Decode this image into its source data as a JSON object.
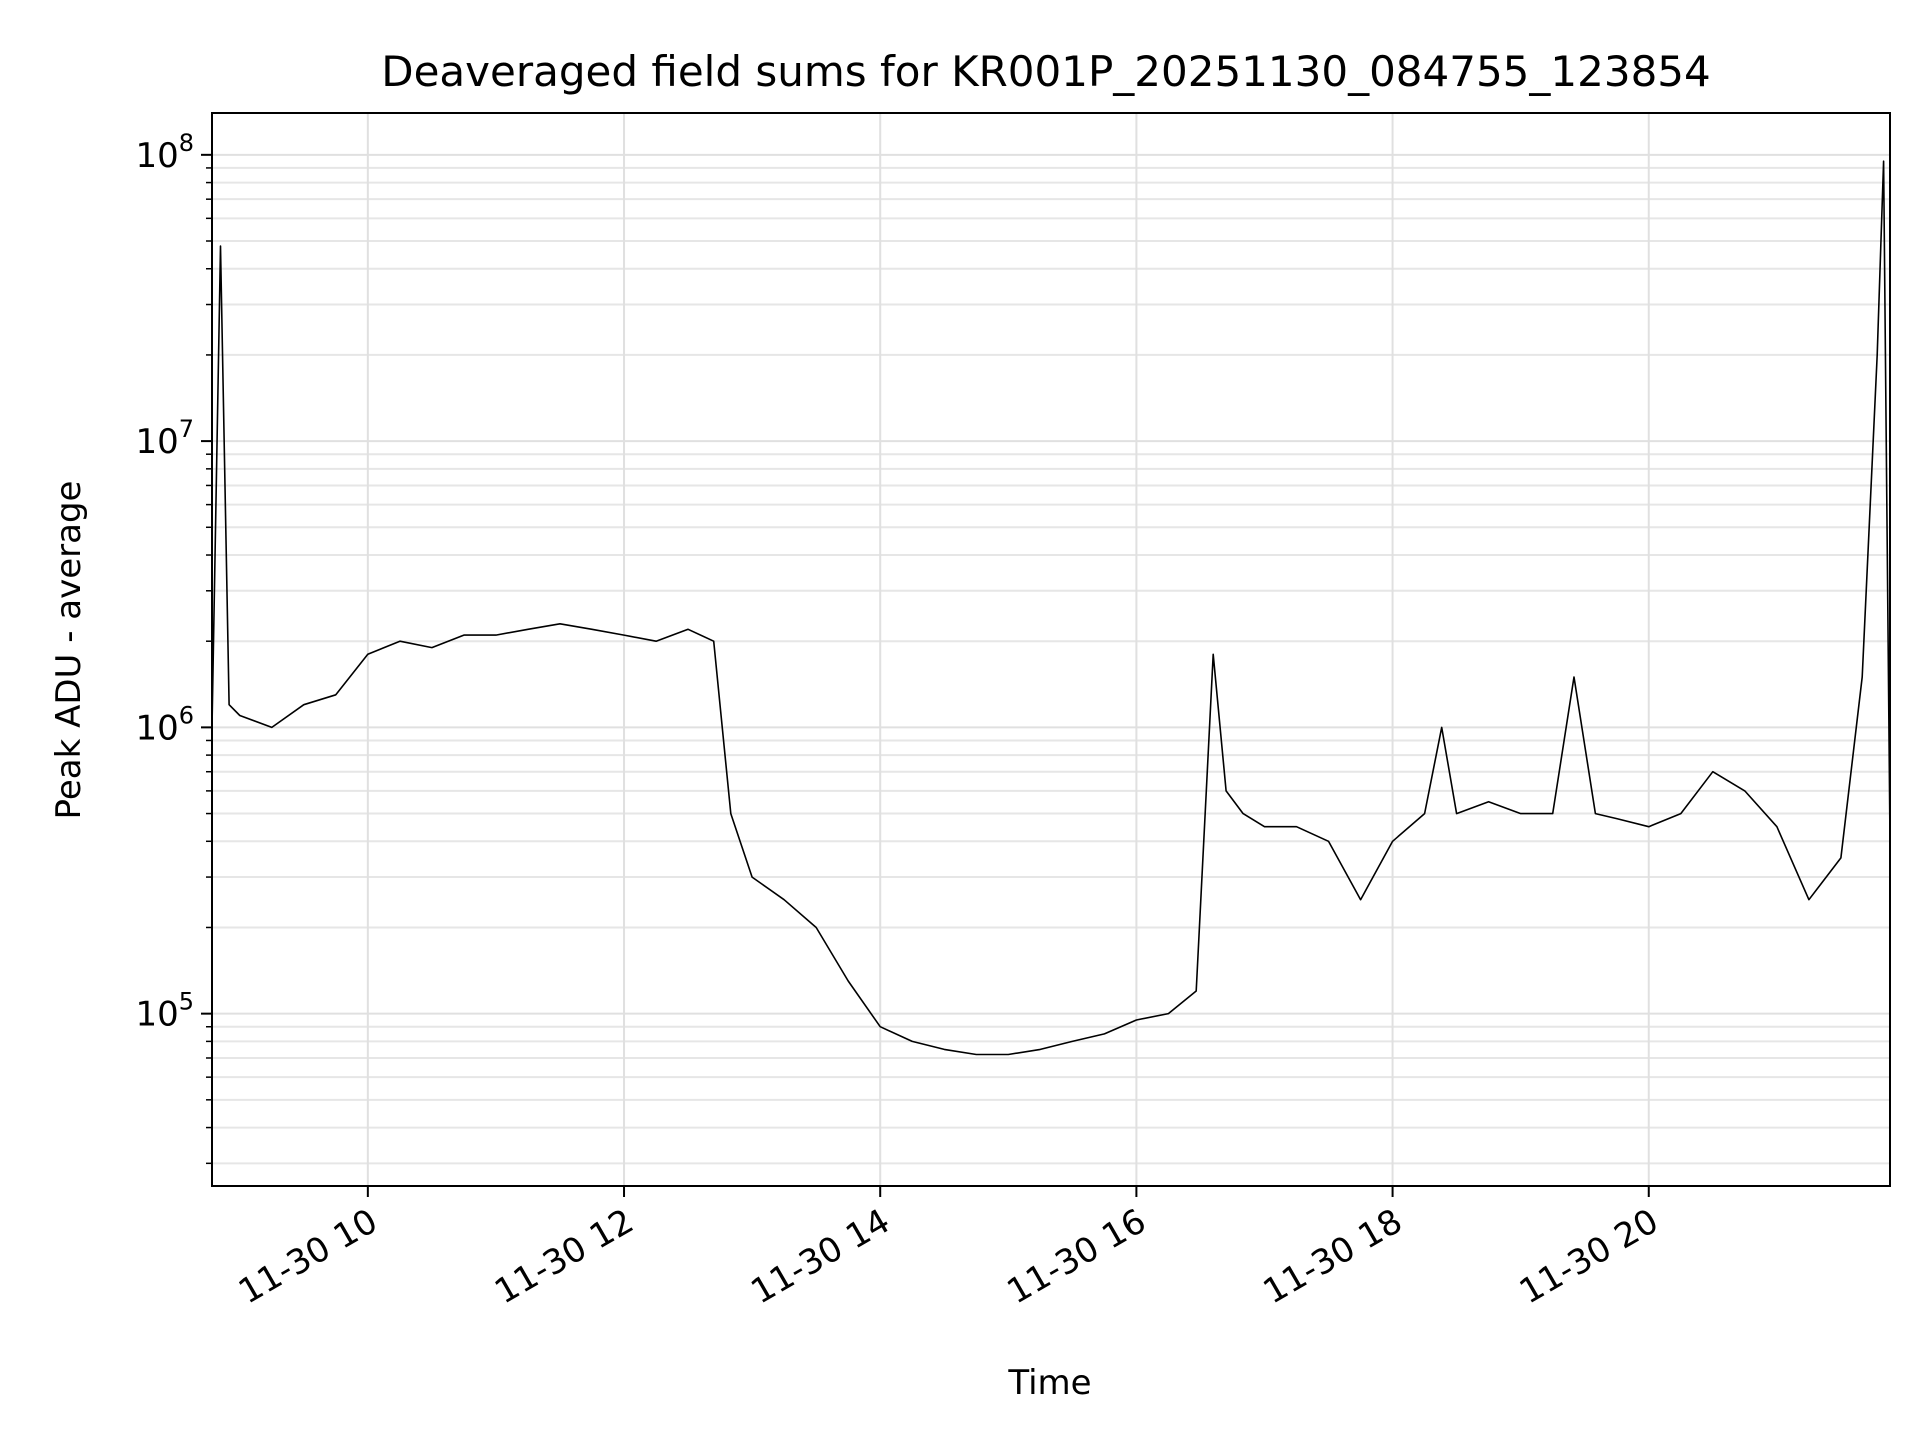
{
  "chart_data": {
    "type": "line",
    "title": "Deaveraged field sums for KR001P_20251130_084755_123854",
    "xlabel": "Time",
    "ylabel": "Peak ADU - average",
    "y_scale": "log",
    "ylim": [
      25000,
      140000000
    ],
    "xlim": [
      "2025-11-30 08:47",
      "2025-11-30 21:53"
    ],
    "grid": true,
    "line_color": "#000000",
    "x_ticks": [
      {
        "value": "2025-11-30 10:00",
        "label": "11-30 10"
      },
      {
        "value": "2025-11-30 12:00",
        "label": "11-30 12"
      },
      {
        "value": "2025-11-30 14:00",
        "label": "11-30 14"
      },
      {
        "value": "2025-11-30 16:00",
        "label": "11-30 16"
      },
      {
        "value": "2025-11-30 18:00",
        "label": "11-30 18"
      },
      {
        "value": "2025-11-30 20:00",
        "label": "11-30 20"
      }
    ],
    "y_ticks": [
      {
        "value": 100000,
        "base": "10",
        "exp": "5"
      },
      {
        "value": 1000000,
        "base": "10",
        "exp": "6"
      },
      {
        "value": 10000000,
        "base": "10",
        "exp": "7"
      },
      {
        "value": 100000000,
        "base": "10",
        "exp": "8"
      }
    ],
    "series": [
      {
        "x": [
          "2025-11-30 08:47",
          "2025-11-30 08:51",
          "2025-11-30 08:55",
          "2025-11-30 09:00",
          "2025-11-30 09:15",
          "2025-11-30 09:30",
          "2025-11-30 09:45",
          "2025-11-30 10:00",
          "2025-11-30 10:15",
          "2025-11-30 10:30",
          "2025-11-30 10:45",
          "2025-11-30 11:00",
          "2025-11-30 11:15",
          "2025-11-30 11:30",
          "2025-11-30 11:45",
          "2025-11-30 12:00",
          "2025-11-30 12:15",
          "2025-11-30 12:30",
          "2025-11-30 12:42",
          "2025-11-30 12:50",
          "2025-11-30 13:00",
          "2025-11-30 13:15",
          "2025-11-30 13:30",
          "2025-11-30 13:45",
          "2025-11-30 14:00",
          "2025-11-30 14:15",
          "2025-11-30 14:30",
          "2025-11-30 14:45",
          "2025-11-30 15:00",
          "2025-11-30 15:15",
          "2025-11-30 15:30",
          "2025-11-30 15:45",
          "2025-11-30 16:00",
          "2025-11-30 16:15",
          "2025-11-30 16:28",
          "2025-11-30 16:36",
          "2025-11-30 16:42",
          "2025-11-30 16:50",
          "2025-11-30 17:00",
          "2025-11-30 17:15",
          "2025-11-30 17:30",
          "2025-11-30 17:45",
          "2025-11-30 18:00",
          "2025-11-30 18:15",
          "2025-11-30 18:23",
          "2025-11-30 18:30",
          "2025-11-30 18:45",
          "2025-11-30 19:00",
          "2025-11-30 19:15",
          "2025-11-30 19:25",
          "2025-11-30 19:35",
          "2025-11-30 19:45",
          "2025-11-30 20:00",
          "2025-11-30 20:15",
          "2025-11-30 20:30",
          "2025-11-30 20:45",
          "2025-11-30 21:00",
          "2025-11-30 21:15",
          "2025-11-30 21:30",
          "2025-11-30 21:40",
          "2025-11-30 21:47",
          "2025-11-30 21:50",
          "2025-11-30 21:53"
        ],
        "values": [
          1000000,
          48000000,
          1200000,
          1100000,
          1000000,
          1200000,
          1300000,
          1800000,
          2000000,
          1900000,
          2100000,
          2100000,
          2200000,
          2300000,
          2200000,
          2100000,
          2000000,
          2200000,
          2000000,
          500000,
          300000,
          250000,
          200000,
          130000,
          90000,
          80000,
          75000,
          72000,
          72000,
          75000,
          80000,
          85000,
          95000,
          100000,
          120000,
          1800000,
          600000,
          500000,
          450000,
          450000,
          400000,
          250000,
          400000,
          500000,
          1000000,
          500000,
          550000,
          500000,
          500000,
          1500000,
          500000,
          480000,
          450000,
          500000,
          700000,
          600000,
          450000,
          250000,
          350000,
          1500000,
          20000000,
          95000000,
          400000
        ]
      }
    ]
  }
}
